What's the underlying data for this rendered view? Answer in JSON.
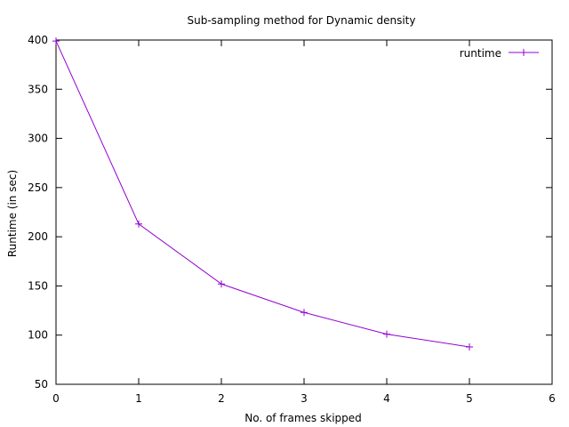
{
  "chart_data": {
    "type": "line",
    "title": "Sub-sampling method for Dynamic density",
    "xlabel": "No. of frames skipped",
    "ylabel": "Runtime (in sec)",
    "xlim": [
      0,
      6
    ],
    "ylim": [
      50,
      400
    ],
    "x_ticks": [
      "0",
      "1",
      "2",
      "3",
      "4",
      "5",
      "6"
    ],
    "y_ticks": [
      "50",
      "100",
      "150",
      "200",
      "250",
      "300",
      "350",
      "400"
    ],
    "grid": false,
    "legend_position": "top-right",
    "series": [
      {
        "name": "runtime",
        "color": "#9400d3",
        "marker": "plus",
        "x": [
          0,
          1,
          2,
          3,
          4,
          5
        ],
        "y": [
          399,
          213,
          152,
          123,
          101,
          88
        ]
      }
    ]
  }
}
